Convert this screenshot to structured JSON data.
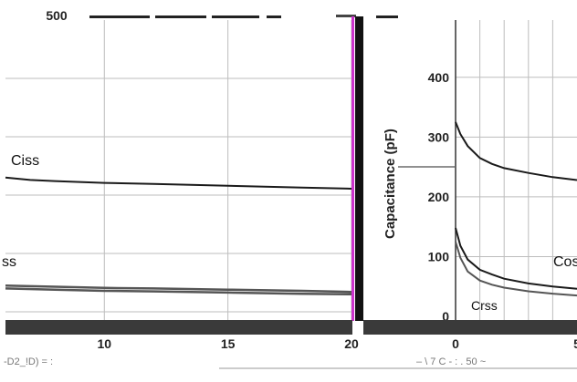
{
  "chart_data": [
    {
      "type": "line",
      "title": "",
      "xlabel": "",
      "ylabel": "",
      "xlim": [
        6,
        20
      ],
      "ylim": [
        0,
        500
      ],
      "x_ticks": [
        "10",
        "15",
        "20"
      ],
      "y_ticks": [
        "500"
      ],
      "series": [
        {
          "name": "Ciss",
          "x": [
            6,
            7,
            8,
            10,
            12,
            15,
            18,
            20
          ],
          "y": [
            230,
            226,
            224,
            221,
            219,
            216,
            213,
            211
          ]
        },
        {
          "name": "ss",
          "x": [
            6,
            8,
            10,
            12,
            15,
            18,
            20
          ],
          "y": [
            45,
            43,
            41,
            40,
            38,
            36,
            34
          ]
        },
        {
          "name": "",
          "x": [
            6,
            8,
            10,
            12,
            15,
            18,
            20
          ],
          "y": [
            40,
            38,
            36,
            35,
            33,
            31,
            30
          ]
        }
      ],
      "grid": true
    },
    {
      "type": "line",
      "title": "",
      "xlabel": "",
      "ylabel": "Capacitance (pF)",
      "xlim": [
        0,
        5
      ],
      "ylim": [
        0,
        450
      ],
      "x_ticks": [
        "0",
        "5"
      ],
      "y_ticks": [
        "0",
        "100",
        "200",
        "300",
        "400"
      ],
      "series": [
        {
          "name": "",
          "x": [
            0,
            0.2,
            0.5,
            1,
            1.5,
            2,
            3,
            4,
            5
          ],
          "y": [
            325,
            305,
            285,
            265,
            255,
            248,
            240,
            233,
            228
          ]
        },
        {
          "name": "Coss",
          "x": [
            0,
            0.2,
            0.5,
            1,
            1.5,
            2,
            3,
            4,
            5
          ],
          "y": [
            148,
            118,
            95,
            78,
            70,
            63,
            55,
            50,
            46
          ]
        },
        {
          "name": "Crss",
          "x": [
            0,
            0.2,
            0.5,
            1,
            1.5,
            2,
            3,
            4,
            5
          ],
          "y": [
            125,
            98,
            75,
            60,
            53,
            48,
            42,
            38,
            35
          ]
        }
      ],
      "grid": true
    }
  ],
  "colors": {
    "grid": "#bdbdbd",
    "curve": "#1a1a1a",
    "curve_light": "#555555",
    "divider_bar": "#111111",
    "divider_accent": "#cc33cc",
    "bottom_band": "#3a3a3a"
  },
  "footer": {
    "left_noise": "-D2_!D) = :",
    "right_noise": "– \\ 7 C  - : . 50 ~"
  }
}
